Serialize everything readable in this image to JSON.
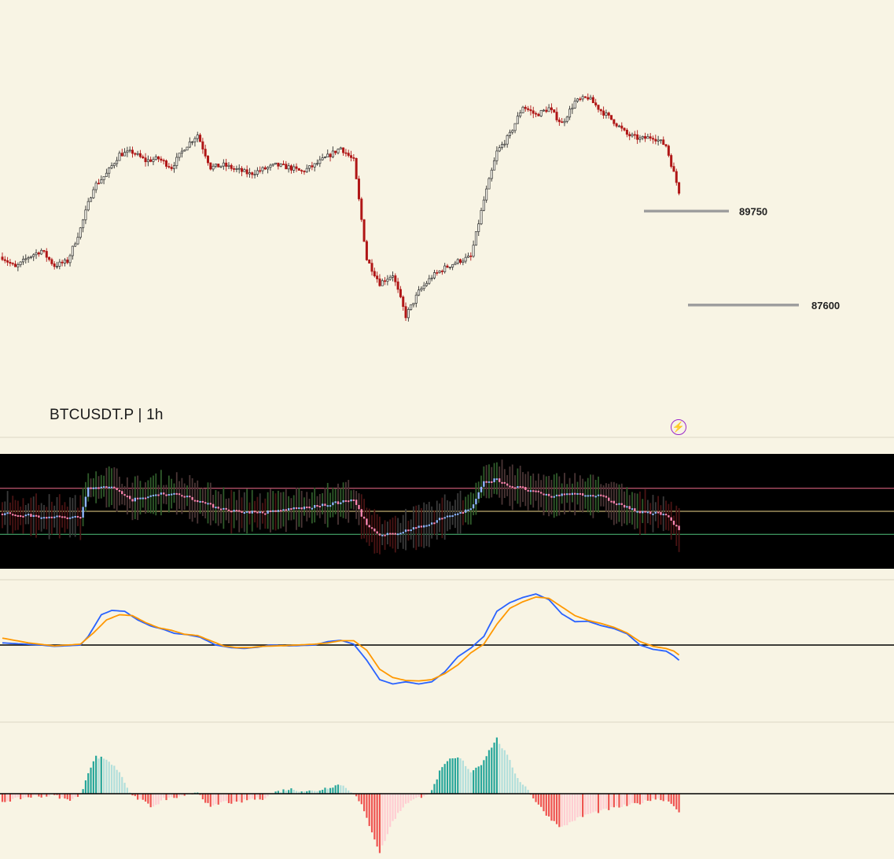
{
  "symbol": {
    "label": "BTCUSDT.P | 1h"
  },
  "colors": {
    "background": "#f8f4e4",
    "candle_up": "#2f2f2f",
    "candle_down": "#b01616",
    "level_line": "#9e9e9e",
    "oscillator_bg": "#000000",
    "osc_upper_line": "#f06c8c",
    "osc_mid_line": "#f0d78c",
    "osc_lower_line": "#4fbf7a",
    "macd_line": "#2962ff",
    "signal_line": "#ff9800",
    "hist_pos_strong": "#26a69a",
    "hist_pos_weak": "#b2dfdb",
    "hist_neg_strong": "#ef5350",
    "hist_neg_weak": "#ffcdd2"
  },
  "icons": {
    "flash": "lightning-bolt-icon"
  },
  "chart_data": [
    {
      "type": "candlestick",
      "title": "BTCUSDT.P | 1h",
      "ylim": [
        86300,
        93500
      ],
      "levels": [
        {
          "label": "89750",
          "value": 89750
        },
        {
          "label": "87600",
          "value": 87600
        }
      ],
      "close_anchors": [
        [
          0,
          88700
        ],
        [
          5,
          88450
        ],
        [
          10,
          88700
        ],
        [
          15,
          88850
        ],
        [
          20,
          88500
        ],
        [
          25,
          88600
        ],
        [
          30,
          89350
        ],
        [
          35,
          90300
        ],
        [
          40,
          90600
        ],
        [
          45,
          91050
        ],
        [
          50,
          91100
        ],
        [
          55,
          90900
        ],
        [
          60,
          90950
        ],
        [
          65,
          90750
        ],
        [
          70,
          91200
        ],
        [
          75,
          91500
        ],
        [
          80,
          90750
        ],
        [
          85,
          90800
        ],
        [
          90,
          90700
        ],
        [
          95,
          90600
        ],
        [
          100,
          90700
        ],
        [
          105,
          90800
        ],
        [
          110,
          90750
        ],
        [
          115,
          90650
        ],
        [
          120,
          90800
        ],
        [
          125,
          91000
        ],
        [
          130,
          91200
        ],
        [
          135,
          90900
        ],
        [
          140,
          88650
        ],
        [
          145,
          88100
        ],
        [
          150,
          88300
        ],
        [
          155,
          87350
        ],
        [
          160,
          87900
        ],
        [
          165,
          88250
        ],
        [
          170,
          88450
        ],
        [
          175,
          88600
        ],
        [
          180,
          88700
        ],
        [
          185,
          90000
        ],
        [
          190,
          91100
        ],
        [
          195,
          91500
        ],
        [
          200,
          92150
        ],
        [
          205,
          91950
        ],
        [
          210,
          92100
        ],
        [
          215,
          91750
        ],
        [
          220,
          92250
        ],
        [
          225,
          92350
        ],
        [
          230,
          92050
        ],
        [
          235,
          91800
        ],
        [
          240,
          91500
        ],
        [
          245,
          91400
        ],
        [
          250,
          91450
        ],
        [
          255,
          91250
        ],
        [
          260,
          90200
        ]
      ],
      "candle_count": 261,
      "x_labels": []
    },
    {
      "type": "oscillator",
      "background": "#000000",
      "bands": {
        "upper": 0.7,
        "mid": 0.5,
        "lower": 0.3
      },
      "value_anchors": [
        [
          0,
          0.48
        ],
        [
          20,
          0.45
        ],
        [
          30,
          0.45
        ],
        [
          33,
          0.7
        ],
        [
          40,
          0.72
        ],
        [
          45,
          0.68
        ],
        [
          50,
          0.6
        ],
        [
          55,
          0.62
        ],
        [
          60,
          0.66
        ],
        [
          70,
          0.64
        ],
        [
          80,
          0.55
        ],
        [
          90,
          0.5
        ],
        [
          100,
          0.49
        ],
        [
          105,
          0.5
        ],
        [
          110,
          0.52
        ],
        [
          120,
          0.54
        ],
        [
          130,
          0.58
        ],
        [
          135,
          0.6
        ],
        [
          140,
          0.38
        ],
        [
          145,
          0.28
        ],
        [
          150,
          0.31
        ],
        [
          160,
          0.36
        ],
        [
          170,
          0.45
        ],
        [
          180,
          0.52
        ],
        [
          185,
          0.75
        ],
        [
          190,
          0.78
        ],
        [
          195,
          0.72
        ],
        [
          200,
          0.7
        ],
        [
          210,
          0.63
        ],
        [
          220,
          0.66
        ],
        [
          230,
          0.63
        ],
        [
          235,
          0.58
        ],
        [
          245,
          0.49
        ],
        [
          255,
          0.48
        ],
        [
          260,
          0.33
        ]
      ]
    },
    {
      "type": "line",
      "name_hint": "macd",
      "zero_line": true,
      "series": [
        {
          "key": "macd",
          "color": "#2962ff",
          "values": [
            [
              0,
              5
            ],
            [
              15,
              0
            ],
            [
              20,
              -3
            ],
            [
              30,
              0
            ],
            [
              33,
              20
            ],
            [
              38,
              70
            ],
            [
              42,
              80
            ],
            [
              47,
              78
            ],
            [
              52,
              58
            ],
            [
              57,
              44
            ],
            [
              62,
              36
            ],
            [
              66,
              27
            ],
            [
              71,
              24
            ],
            [
              76,
              18
            ],
            [
              82,
              0
            ],
            [
              88,
              -6
            ],
            [
              93,
              -8
            ],
            [
              98,
              -5
            ],
            [
              103,
              0
            ],
            [
              110,
              -2
            ],
            [
              120,
              0
            ],
            [
              125,
              8
            ],
            [
              130,
              11
            ],
            [
              135,
              2
            ],
            [
              140,
              -35
            ],
            [
              145,
              -80
            ],
            [
              150,
              -90
            ],
            [
              155,
              -85
            ],
            [
              160,
              -90
            ],
            [
              165,
              -85
            ],
            [
              170,
              -62
            ],
            [
              175,
              -27
            ],
            [
              180,
              -7
            ],
            [
              185,
              20
            ],
            [
              190,
              78
            ],
            [
              195,
              98
            ],
            [
              200,
              110
            ],
            [
              205,
              118
            ],
            [
              210,
              105
            ],
            [
              215,
              72
            ],
            [
              220,
              54
            ],
            [
              225,
              55
            ],
            [
              230,
              45
            ],
            [
              235,
              38
            ],
            [
              240,
              26
            ],
            [
              245,
              0
            ],
            [
              250,
              -10
            ],
            [
              255,
              -14
            ],
            [
              258,
              -25
            ],
            [
              260,
              -35
            ]
          ]
        },
        {
          "key": "signal",
          "color": "#ff9800",
          "values": [
            [
              0,
              16
            ],
            [
              10,
              5
            ],
            [
              20,
              -2
            ],
            [
              30,
              2
            ],
            [
              35,
              28
            ],
            [
              40,
              58
            ],
            [
              45,
              70
            ],
            [
              50,
              68
            ],
            [
              55,
              52
            ],
            [
              60,
              40
            ],
            [
              65,
              34
            ],
            [
              70,
              25
            ],
            [
              75,
              22
            ],
            [
              80,
              10
            ],
            [
              85,
              -2
            ],
            [
              90,
              -6
            ],
            [
              95,
              -6
            ],
            [
              100,
              -3
            ],
            [
              110,
              -1
            ],
            [
              120,
              2
            ],
            [
              125,
              5
            ],
            [
              130,
              10
            ],
            [
              135,
              10
            ],
            [
              140,
              -12
            ],
            [
              145,
              -56
            ],
            [
              150,
              -75
            ],
            [
              155,
              -82
            ],
            [
              160,
              -83
            ],
            [
              165,
              -80
            ],
            [
              170,
              -66
            ],
            [
              175,
              -46
            ],
            [
              180,
              -18
            ],
            [
              185,
              2
            ],
            [
              190,
              48
            ],
            [
              195,
              85
            ],
            [
              200,
              100
            ],
            [
              205,
              111
            ],
            [
              210,
              108
            ],
            [
              215,
              88
            ],
            [
              220,
              68
            ],
            [
              225,
              57
            ],
            [
              230,
              50
            ],
            [
              235,
              41
            ],
            [
              240,
              28
            ],
            [
              245,
              8
            ],
            [
              250,
              -3
            ],
            [
              255,
              -8
            ],
            [
              258,
              -14
            ],
            [
              260,
              -23
            ]
          ]
        }
      ]
    },
    {
      "type": "bar",
      "name_hint": "histogram",
      "zero_line": true,
      "value_anchors": [
        [
          0,
          -10
        ],
        [
          10,
          -4
        ],
        [
          20,
          -2
        ],
        [
          25,
          -8
        ],
        [
          30,
          -3
        ],
        [
          33,
          28
        ],
        [
          36,
          47
        ],
        [
          40,
          44
        ],
        [
          45,
          28
        ],
        [
          50,
          -4
        ],
        [
          54,
          -8
        ],
        [
          58,
          -18
        ],
        [
          62,
          -7
        ],
        [
          66,
          -5
        ],
        [
          70,
          -4
        ],
        [
          75,
          3
        ],
        [
          80,
          -18
        ],
        [
          85,
          -10
        ],
        [
          90,
          -12
        ],
        [
          95,
          -7
        ],
        [
          100,
          -6
        ],
        [
          105,
          2
        ],
        [
          110,
          6
        ],
        [
          115,
          4
        ],
        [
          120,
          3
        ],
        [
          125,
          8
        ],
        [
          130,
          12
        ],
        [
          135,
          1
        ],
        [
          138,
          -15
        ],
        [
          142,
          -48
        ],
        [
          145,
          -75
        ],
        [
          150,
          -35
        ],
        [
          155,
          -12
        ],
        [
          160,
          -5
        ],
        [
          165,
          3
        ],
        [
          168,
          28
        ],
        [
          172,
          44
        ],
        [
          176,
          45
        ],
        [
          180,
          28
        ],
        [
          184,
          38
        ],
        [
          188,
          60
        ],
        [
          190,
          70
        ],
        [
          194,
          48
        ],
        [
          198,
          20
        ],
        [
          202,
          5
        ],
        [
          205,
          -10
        ],
        [
          210,
          -30
        ],
        [
          215,
          -43
        ],
        [
          220,
          -33
        ],
        [
          225,
          -26
        ],
        [
          230,
          -22
        ],
        [
          235,
          -18
        ],
        [
          240,
          -15
        ],
        [
          245,
          -12
        ],
        [
          250,
          -6
        ],
        [
          255,
          -8
        ],
        [
          258,
          -14
        ],
        [
          260,
          -25
        ]
      ]
    }
  ]
}
